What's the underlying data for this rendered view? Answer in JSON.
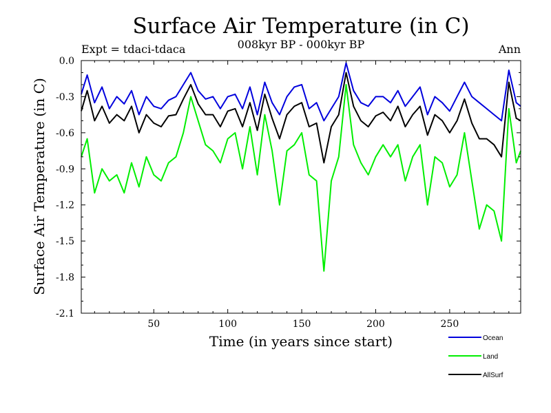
{
  "chart_data": {
    "type": "line",
    "title": "Surface Air Temperature (in C)",
    "subtitle": "008kyr BP - 000kyr BP",
    "expt_label": "Expt = tdaci-tdaca",
    "season_label": "Ann",
    "xlabel": "Time (in years since start)",
    "ylabel": "Surface Air Temperature (in C)",
    "xlim": [
      1,
      298
    ],
    "ylim": [
      -2.1,
      0.0
    ],
    "xticks": [
      50,
      100,
      150,
      200,
      250
    ],
    "yticks": [
      0.0,
      -0.3,
      -0.6,
      -0.9,
      -1.2,
      -1.5,
      -1.8,
      -2.1
    ],
    "ytick_labels": [
      "0.0",
      "-0.3",
      "-0.6",
      "-0.9",
      "-1.2",
      "-1.5",
      "-1.8",
      "-2.1"
    ],
    "x": [
      1,
      5,
      10,
      15,
      20,
      25,
      30,
      35,
      40,
      45,
      50,
      55,
      60,
      65,
      70,
      75,
      80,
      85,
      90,
      95,
      100,
      105,
      110,
      115,
      120,
      125,
      130,
      135,
      140,
      145,
      150,
      155,
      160,
      165,
      170,
      175,
      180,
      185,
      190,
      195,
      200,
      205,
      210,
      215,
      220,
      225,
      230,
      235,
      240,
      245,
      250,
      255,
      260,
      265,
      270,
      275,
      280,
      285,
      290,
      295,
      298
    ],
    "series": [
      {
        "name": "Ocean",
        "color": "#0000dd",
        "values": [
          -0.28,
          -0.12,
          -0.35,
          -0.22,
          -0.4,
          -0.3,
          -0.36,
          -0.25,
          -0.45,
          -0.3,
          -0.38,
          -0.4,
          -0.33,
          -0.3,
          -0.2,
          -0.1,
          -0.25,
          -0.32,
          -0.3,
          -0.4,
          -0.3,
          -0.28,
          -0.4,
          -0.22,
          -0.45,
          -0.18,
          -0.35,
          -0.45,
          -0.3,
          -0.22,
          -0.2,
          -0.4,
          -0.35,
          -0.5,
          -0.4,
          -0.3,
          -0.02,
          -0.25,
          -0.35,
          -0.38,
          -0.3,
          -0.3,
          -0.35,
          -0.25,
          -0.38,
          -0.3,
          -0.22,
          -0.45,
          -0.3,
          -0.35,
          -0.42,
          -0.3,
          -0.18,
          -0.3,
          -0.35,
          -0.4,
          -0.45,
          -0.5,
          -0.08,
          -0.35,
          -0.38
        ]
      },
      {
        "name": "Land",
        "color": "#00ee00",
        "values": [
          -0.8,
          -0.65,
          -1.1,
          -0.9,
          -1.0,
          -0.95,
          -1.1,
          -0.85,
          -1.05,
          -0.8,
          -0.95,
          -1.0,
          -0.85,
          -0.8,
          -0.6,
          -0.3,
          -0.5,
          -0.7,
          -0.75,
          -0.85,
          -0.65,
          -0.6,
          -0.9,
          -0.55,
          -0.95,
          -0.45,
          -0.75,
          -1.2,
          -0.75,
          -0.7,
          -0.6,
          -0.95,
          -1.0,
          -1.75,
          -1.0,
          -0.8,
          -0.2,
          -0.7,
          -0.85,
          -0.95,
          -0.8,
          -0.7,
          -0.8,
          -0.7,
          -1.0,
          -0.8,
          -0.7,
          -1.2,
          -0.8,
          -0.85,
          -1.05,
          -0.95,
          -0.6,
          -1.0,
          -1.4,
          -1.2,
          -1.25,
          -1.5,
          -0.4,
          -0.85,
          -0.75
        ]
      },
      {
        "name": "AllSurf",
        "color": "#000000",
        "values": [
          -0.42,
          -0.25,
          -0.5,
          -0.38,
          -0.52,
          -0.45,
          -0.5,
          -0.38,
          -0.6,
          -0.45,
          -0.52,
          -0.55,
          -0.46,
          -0.45,
          -0.32,
          -0.2,
          -0.36,
          -0.45,
          -0.45,
          -0.55,
          -0.42,
          -0.4,
          -0.55,
          -0.35,
          -0.58,
          -0.28,
          -0.48,
          -0.65,
          -0.45,
          -0.38,
          -0.35,
          -0.55,
          -0.52,
          -0.85,
          -0.55,
          -0.45,
          -0.1,
          -0.38,
          -0.5,
          -0.55,
          -0.46,
          -0.43,
          -0.5,
          -0.38,
          -0.55,
          -0.45,
          -0.38,
          -0.62,
          -0.45,
          -0.5,
          -0.6,
          -0.5,
          -0.32,
          -0.52,
          -0.65,
          -0.65,
          -0.7,
          -0.8,
          -0.18,
          -0.48,
          -0.5
        ]
      }
    ]
  },
  "legend": {
    "items": [
      {
        "label": "Ocean",
        "color": "#0000dd"
      },
      {
        "label": "Land",
        "color": "#00ee00"
      },
      {
        "label": "AllSurf",
        "color": "#000000"
      }
    ]
  }
}
